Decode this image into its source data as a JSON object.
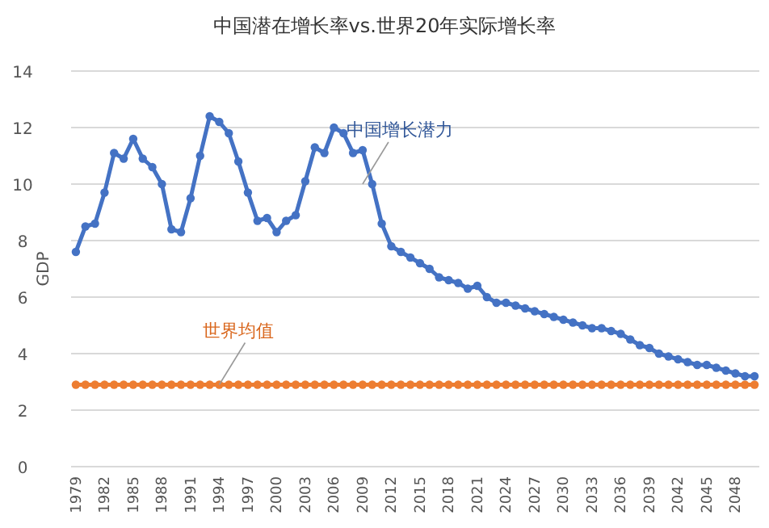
{
  "chart_data": {
    "type": "line",
    "title": "中国潜在增长率vs.世界20年实际增长率",
    "ylabel": "GDP",
    "categories": [
      "1979",
      null,
      null,
      "1982",
      null,
      null,
      "1985",
      null,
      null,
      "1988",
      null,
      null,
      "1991",
      null,
      null,
      "1994",
      null,
      null,
      "1997",
      null,
      null,
      "2000",
      null,
      null,
      "2003",
      null,
      null,
      "2006",
      null,
      null,
      "2009",
      null,
      null,
      "2012",
      null,
      null,
      "2015",
      null,
      null,
      "2018",
      null,
      null,
      "2021",
      null,
      null,
      "2024",
      null,
      null,
      "2027",
      null,
      null,
      "2030",
      null,
      null,
      "2033",
      null,
      null,
      "2036",
      null,
      null,
      "2039",
      null,
      null,
      "2042",
      null,
      null,
      "2045",
      null,
      null,
      "2048",
      null,
      null
    ],
    "series": [
      {
        "color": "#4472c4",
        "values": [
          7.6,
          8.5,
          8.6,
          9.7,
          11.1,
          10.9,
          11.6,
          10.9,
          10.6,
          10.0,
          8.4,
          8.3,
          9.5,
          11.0,
          12.4,
          12.2,
          11.8,
          10.8,
          9.7,
          8.7,
          8.8,
          8.3,
          8.7,
          8.9,
          10.1,
          11.3,
          11.1,
          12.0,
          11.8,
          11.1,
          11.2,
          10.0,
          8.6,
          7.8,
          7.6,
          7.4,
          7.2,
          7.0,
          6.7,
          6.6,
          6.5,
          6.3,
          6.4,
          6.0,
          5.8,
          5.8,
          5.7,
          5.6,
          5.5,
          5.4,
          5.3,
          5.2,
          5.1,
          5.0,
          4.9,
          4.9,
          4.8,
          4.7,
          4.5,
          4.3,
          4.2,
          4.0,
          3.9,
          3.8,
          3.7,
          3.6,
          3.6,
          3.5,
          3.4,
          3.3,
          3.2,
          3.2
        ]
      },
      {
        "color": "#ed7d31",
        "values": [
          2.9,
          2.9,
          2.9,
          2.9,
          2.9,
          2.9,
          2.9,
          2.9,
          2.9,
          2.9,
          2.9,
          2.9,
          2.9,
          2.9,
          2.9,
          2.9,
          2.9,
          2.9,
          2.9,
          2.9,
          2.9,
          2.9,
          2.9,
          2.9,
          2.9,
          2.9,
          2.9,
          2.9,
          2.9,
          2.9,
          2.9,
          2.9,
          2.9,
          2.9,
          2.9,
          2.9,
          2.9,
          2.9,
          2.9,
          2.9,
          2.9,
          2.9,
          2.9,
          2.9,
          2.9,
          2.9,
          2.9,
          2.9,
          2.9,
          2.9,
          2.9,
          2.9,
          2.9,
          2.9,
          2.9,
          2.9,
          2.9,
          2.9,
          2.9,
          2.9,
          2.9,
          2.9,
          2.9,
          2.9,
          2.9,
          2.9,
          2.9,
          2.9,
          2.9,
          2.9,
          2.9,
          2.9
        ]
      }
    ],
    "ylim": [
      0,
      14
    ],
    "yticks": [
      0,
      2,
      4,
      6,
      8,
      10,
      12,
      14
    ],
    "annotations": [
      {
        "text": "中国增长潜力",
        "x": "2009",
        "y": 10.0
      },
      {
        "text": "世界均值",
        "x": "1994",
        "y": 2.9
      }
    ],
    "grid": "y",
    "marker": "circle",
    "line_style": "solid"
  }
}
